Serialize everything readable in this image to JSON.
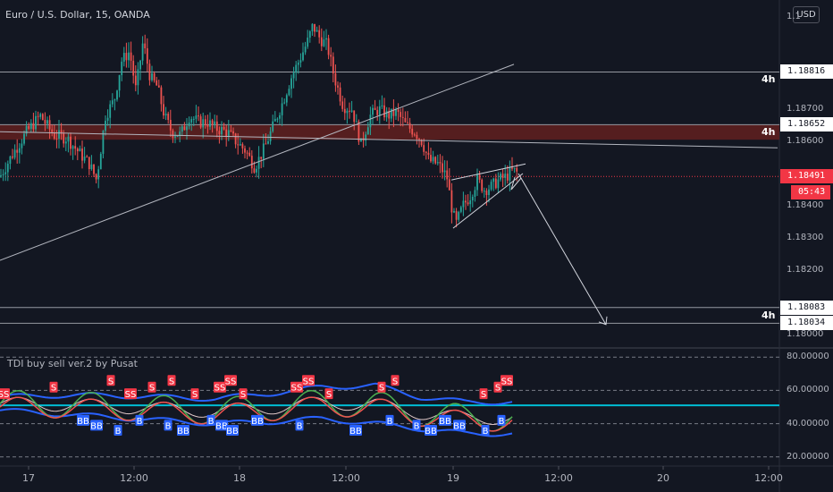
{
  "header": {
    "title": "Euro / U.S. Dollar, 15, OANDA",
    "currency_button": "USD",
    "indicator_title": "TDI buy sell ver.2 by Pusat"
  },
  "colors": {
    "background": "#131722",
    "bull": "#26a69a",
    "bear": "#ef5350",
    "zone": "#5d1f1f",
    "current_price": "#f23645",
    "indicator_line": "#00bcd4",
    "band": "#2962ff",
    "sell_signal": "#f23645",
    "buy_signal": "#2962ff"
  },
  "chart_data": [
    {
      "type": "candlestick",
      "title": "Euro / U.S. Dollar, 15, OANDA",
      "y_range": [
        1.1796,
        1.1904
      ],
      "y_ticks": [
        "1.18700",
        "1.18600",
        "1.18400",
        "1.18300",
        "1.18200",
        "1.18000"
      ],
      "y_top_tick": "1.1",
      "x_ticks": [
        "17",
        "12:00",
        "18",
        "12:00",
        "19",
        "12:00",
        "20",
        "12:00"
      ],
      "horizontal_levels": [
        {
          "price": "1.18816",
          "timeframe": "4h"
        },
        {
          "price": "1.18652",
          "timeframe": "4h"
        },
        {
          "price": "1.18083",
          "timeframe": "4h"
        },
        {
          "price": "1.18034",
          "timeframe": ""
        }
      ],
      "resistance_zone": [
        1.18622,
        1.18652
      ],
      "current_price": "1.18491",
      "countdown": "05:43",
      "trendlines": [
        {
          "name": "rising-support",
          "from": [
            0,
            1.1823
          ],
          "to": [
            575,
            1.1884
          ]
        },
        {
          "name": "falling-line",
          "from": [
            0,
            1.1863
          ],
          "to": [
            870,
            1.1858
          ]
        }
      ],
      "forecast_arrow": {
        "from": [
          580,
          1.185
        ],
        "to": [
          678,
          1.1803
        ]
      },
      "wedge": {
        "upper": [
          [
            505,
            1.1848
          ],
          [
            588,
            1.1853
          ]
        ],
        "lower": [
          [
            507,
            1.1833
          ],
          [
            585,
            1.185
          ]
        ]
      },
      "path_anchors": [
        [
          0,
          1.1849
        ],
        [
          14,
          1.1856
        ],
        [
          30,
          1.1863
        ],
        [
          45,
          1.1868
        ],
        [
          60,
          1.1862
        ],
        [
          75,
          1.1861
        ],
        [
          90,
          1.1856
        ],
        [
          100,
          1.1853
        ],
        [
          108,
          1.1848
        ],
        [
          118,
          1.1868
        ],
        [
          128,
          1.1873
        ],
        [
          136,
          1.1885
        ],
        [
          145,
          1.1888
        ],
        [
          152,
          1.1876
        ],
        [
          160,
          1.1891
        ],
        [
          168,
          1.188
        ],
        [
          176,
          1.1877
        ],
        [
          184,
          1.1868
        ],
        [
          192,
          1.1863
        ],
        [
          202,
          1.1862
        ],
        [
          212,
          1.1868
        ],
        [
          222,
          1.1866
        ],
        [
          232,
          1.1866
        ],
        [
          242,
          1.1864
        ],
        [
          254,
          1.1863
        ],
        [
          264,
          1.186
        ],
        [
          275,
          1.1857
        ],
        [
          285,
          1.1852
        ],
        [
          296,
          1.1858
        ],
        [
          306,
          1.1865
        ],
        [
          316,
          1.1872
        ],
        [
          326,
          1.188
        ],
        [
          336,
          1.1886
        ],
        [
          344,
          1.1891
        ],
        [
          350,
          1.1896
        ],
        [
          358,
          1.1892
        ],
        [
          366,
          1.189
        ],
        [
          374,
          1.188
        ],
        [
          384,
          1.1871
        ],
        [
          394,
          1.187
        ],
        [
          404,
          1.1859
        ],
        [
          414,
          1.1868
        ],
        [
          424,
          1.187
        ],
        [
          434,
          1.1868
        ],
        [
          444,
          1.1869
        ],
        [
          454,
          1.1865
        ],
        [
          464,
          1.1863
        ],
        [
          472,
          1.186
        ],
        [
          480,
          1.1854
        ],
        [
          490,
          1.1853
        ],
        [
          500,
          1.1849
        ],
        [
          505,
          1.184
        ],
        [
          510,
          1.1834
        ],
        [
          518,
          1.184
        ],
        [
          526,
          1.1843
        ],
        [
          534,
          1.1848
        ],
        [
          542,
          1.1845
        ],
        [
          550,
          1.1846
        ],
        [
          558,
          1.1848
        ],
        [
          566,
          1.1849
        ],
        [
          574,
          1.1851
        ],
        [
          580,
          1.185
        ]
      ]
    },
    {
      "type": "line",
      "title": "TDI buy sell ver.2 by Pusat",
      "y_range": [
        15,
        85
      ],
      "y_ticks": [
        "80.00000",
        "60.00000",
        "40.00000",
        "20.00000"
      ],
      "level_line": 51,
      "upper_band_path": [
        [
          0,
          56
        ],
        [
          60,
          57
        ],
        [
          120,
          57
        ],
        [
          180,
          56
        ],
        [
          240,
          55
        ],
        [
          300,
          58
        ],
        [
          360,
          62
        ],
        [
          420,
          63
        ],
        [
          470,
          56
        ],
        [
          520,
          53
        ],
        [
          575,
          53
        ]
      ],
      "lower_band_path": [
        [
          0,
          48
        ],
        [
          60,
          46
        ],
        [
          120,
          44
        ],
        [
          180,
          42
        ],
        [
          240,
          40
        ],
        [
          300,
          41
        ],
        [
          360,
          43
        ],
        [
          420,
          40
        ],
        [
          470,
          37
        ],
        [
          520,
          34
        ],
        [
          575,
          34
        ]
      ],
      "buy_signals": [
        {
          "x": 93,
          "label": "BB"
        },
        {
          "x": 108,
          "label": "BB"
        },
        {
          "x": 132,
          "label": "B"
        },
        {
          "x": 156,
          "label": "B"
        },
        {
          "x": 188,
          "label": "B"
        },
        {
          "x": 205,
          "label": "BB"
        },
        {
          "x": 236,
          "label": "B"
        },
        {
          "x": 248,
          "label": "BB"
        },
        {
          "x": 260,
          "label": "BB"
        },
        {
          "x": 288,
          "label": "BB"
        },
        {
          "x": 335,
          "label": "B"
        },
        {
          "x": 398,
          "label": "BB"
        },
        {
          "x": 436,
          "label": "B"
        },
        {
          "x": 466,
          "label": "B"
        },
        {
          "x": 482,
          "label": "BB"
        },
        {
          "x": 498,
          "label": "BB"
        },
        {
          "x": 514,
          "label": "BB"
        },
        {
          "x": 543,
          "label": "B"
        },
        {
          "x": 561,
          "label": "B"
        }
      ],
      "sell_signals": [
        {
          "x": 4,
          "label": "SS"
        },
        {
          "x": 60,
          "label": "S"
        },
        {
          "x": 124,
          "label": "S"
        },
        {
          "x": 146,
          "label": "SS"
        },
        {
          "x": 170,
          "label": "S"
        },
        {
          "x": 192,
          "label": "S"
        },
        {
          "x": 218,
          "label": "S"
        },
        {
          "x": 246,
          "label": "SS"
        },
        {
          "x": 258,
          "label": "SS"
        },
        {
          "x": 272,
          "label": "S"
        },
        {
          "x": 332,
          "label": "SS"
        },
        {
          "x": 345,
          "label": "SS"
        },
        {
          "x": 368,
          "label": "S"
        },
        {
          "x": 427,
          "label": "S"
        },
        {
          "x": 442,
          "label": "S"
        },
        {
          "x": 541,
          "label": "S"
        },
        {
          "x": 557,
          "label": "S"
        },
        {
          "x": 567,
          "label": "SS"
        }
      ]
    }
  ]
}
